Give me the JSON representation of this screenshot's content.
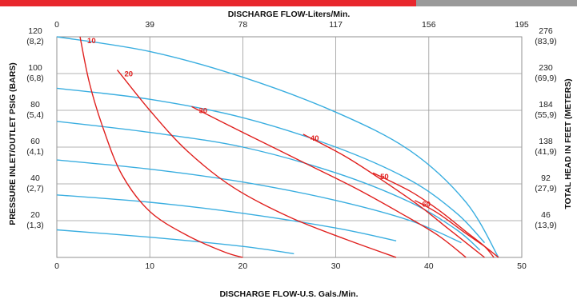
{
  "header_colors": {
    "left_bar": "#e8272d",
    "right_bar": "#9a9a9a"
  },
  "chart_data": {
    "type": "line",
    "title": "",
    "x_top_label": "DISCHARGE FLOW-Liters/Min.",
    "x_bottom_label": "DISCHARGE FLOW-U.S. Gals./Min.",
    "y_left_label": "PRESSURE INLET/OUTLET PSIG (BARS)",
    "y_right_label": "TOTAL HEAD IN FEET (METERS)",
    "xlim": [
      0,
      50
    ],
    "ylim": [
      0,
      120
    ],
    "grid": true,
    "x_bottom_ticks": [
      "0",
      "10",
      "20",
      "30",
      "40",
      "50"
    ],
    "x_top_ticks": [
      "0",
      "39",
      "78",
      "117",
      "156",
      "195"
    ],
    "y_left_ticks": [
      {
        "value": 120,
        "psi": "120",
        "bar": "(8,2)"
      },
      {
        "value": 100,
        "psi": "100",
        "bar": "(6,8)"
      },
      {
        "value": 80,
        "psi": "80",
        "bar": "(5,4)"
      },
      {
        "value": 60,
        "psi": "60",
        "bar": "(4,1)"
      },
      {
        "value": 40,
        "psi": "40",
        "bar": "(2,7)"
      },
      {
        "value": 20,
        "psi": "20",
        "bar": "(1,3)"
      }
    ],
    "y_right_ticks": [
      {
        "value": 120,
        "feet": "276",
        "meters": "(83,9)"
      },
      {
        "value": 100,
        "feet": "230",
        "meters": "(69,9)"
      },
      {
        "value": 80,
        "feet": "184",
        "meters": "(55,9)"
      },
      {
        "value": 60,
        "feet": "138",
        "meters": "(41,9)"
      },
      {
        "value": 40,
        "feet": "92",
        "meters": "(27,9)"
      },
      {
        "value": 20,
        "feet": "46",
        "meters": "(13,9)"
      }
    ],
    "performance_color": "#3aaee0",
    "air_color": "#e0201e",
    "performance_curves": [
      {
        "values": [
          [
            0,
            120
          ],
          [
            10,
            112
          ],
          [
            20,
            98
          ],
          [
            30,
            79
          ],
          [
            38,
            58
          ],
          [
            44,
            30
          ],
          [
            47.5,
            0
          ]
        ]
      },
      {
        "values": [
          [
            0,
            92
          ],
          [
            10,
            86
          ],
          [
            20,
            76
          ],
          [
            30,
            60
          ],
          [
            38,
            42
          ],
          [
            43,
            24
          ],
          [
            46,
            8
          ]
        ]
      },
      {
        "values": [
          [
            0,
            74
          ],
          [
            10,
            68
          ],
          [
            20,
            60
          ],
          [
            30,
            46
          ],
          [
            38,
            30
          ],
          [
            43,
            15
          ],
          [
            45.5,
            4
          ]
        ]
      },
      {
        "values": [
          [
            0,
            53
          ],
          [
            10,
            48
          ],
          [
            20,
            41
          ],
          [
            30,
            31
          ],
          [
            38,
            20
          ],
          [
            43.5,
            8
          ]
        ]
      },
      {
        "values": [
          [
            0,
            34
          ],
          [
            10,
            30
          ],
          [
            20,
            24
          ],
          [
            30,
            16
          ],
          [
            36.5,
            9
          ]
        ]
      },
      {
        "values": [
          [
            0,
            15
          ],
          [
            10,
            11
          ],
          [
            20,
            6
          ],
          [
            25.5,
            2
          ]
        ]
      }
    ],
    "air_curves": [
      {
        "label": "10",
        "values": [
          [
            2.5,
            120
          ],
          [
            3.5,
            95
          ],
          [
            5,
            70
          ],
          [
            7,
            45
          ],
          [
            10,
            25
          ],
          [
            14,
            12
          ],
          [
            18,
            3
          ],
          [
            20,
            0
          ]
        ]
      },
      {
        "label": "20",
        "values": [
          [
            6.5,
            102
          ],
          [
            10,
            80
          ],
          [
            14,
            58
          ],
          [
            19,
            38
          ],
          [
            25,
            22
          ],
          [
            31,
            10
          ],
          [
            36.5,
            0
          ]
        ]
      },
      {
        "label": "30",
        "values": [
          [
            14.5,
            82
          ],
          [
            20,
            68
          ],
          [
            26,
            53
          ],
          [
            32,
            38
          ],
          [
            37,
            24
          ],
          [
            41,
            12
          ],
          [
            44,
            0
          ]
        ]
      },
      {
        "label": "40",
        "values": [
          [
            26.5,
            67
          ],
          [
            31,
            55
          ],
          [
            35,
            42
          ],
          [
            39,
            28
          ],
          [
            42,
            16
          ],
          [
            45,
            4
          ],
          [
            46,
            0
          ]
        ]
      },
      {
        "label": "50",
        "values": [
          [
            34,
            46
          ],
          [
            38,
            36
          ],
          [
            41,
            26
          ],
          [
            44,
            14
          ],
          [
            46,
            6
          ],
          [
            47,
            0
          ]
        ]
      },
      {
        "label": "60",
        "values": [
          [
            38.5,
            31
          ],
          [
            41,
            24
          ],
          [
            44,
            13
          ],
          [
            46,
            6
          ],
          [
            47.5,
            0
          ]
        ]
      }
    ]
  }
}
